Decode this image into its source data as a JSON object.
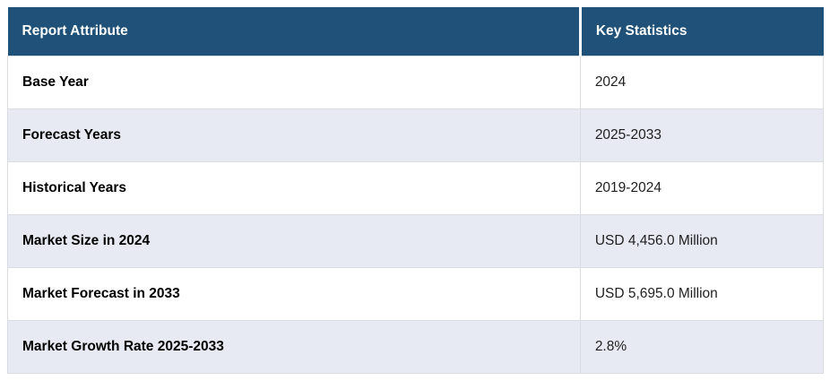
{
  "colors": {
    "header_bg": "#205279",
    "header_text": "#ffffff",
    "stripe_row_bg": "#e7e9f3",
    "plain_row_bg": "#ffffff",
    "border": "#d9dce1",
    "attribute_text": "#000000",
    "value_text": "#212121"
  },
  "chart_data": {
    "type": "table",
    "columns": [
      "Report Attribute",
      "Key Statistics"
    ],
    "rows": [
      {
        "attribute": "Base Year",
        "value": "2024"
      },
      {
        "attribute": "Forecast Years",
        "value": "2025-2033"
      },
      {
        "attribute": "Historical Years",
        "value": "2019-2024"
      },
      {
        "attribute": "Market Size in 2024",
        "value": "USD 4,456.0 Million"
      },
      {
        "attribute": "Market Forecast in 2033",
        "value": "USD 5,695.0 Million"
      },
      {
        "attribute": "Market Growth Rate 2025-2033",
        "value": "2.8%"
      }
    ],
    "layout_hints": {
      "striped": true,
      "stripe_pattern": "even-rows-shaded",
      "header_style": "dark-blue-bold-white"
    }
  }
}
